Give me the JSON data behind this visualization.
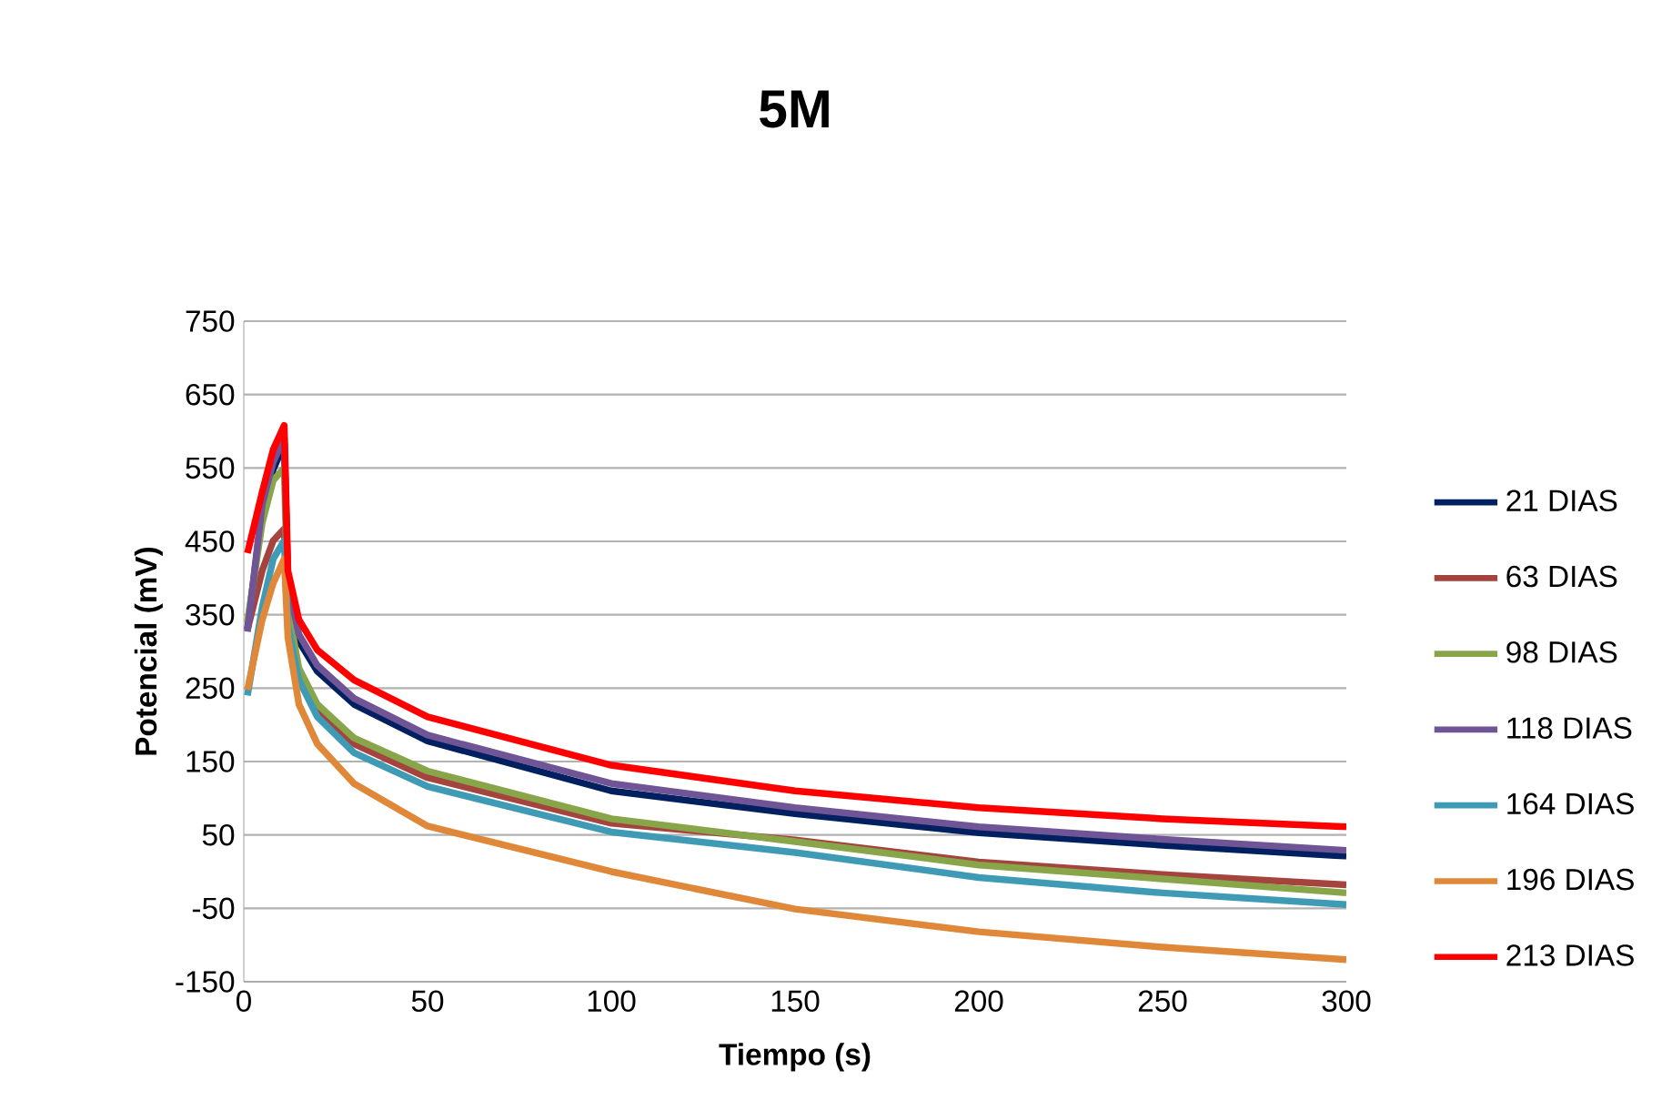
{
  "chart_data": {
    "type": "line",
    "title": "5M",
    "xlabel": "Tiempo (s)",
    "ylabel": "Potencial (mV)",
    "x": [
      1,
      5,
      8,
      11,
      12,
      15,
      20,
      30,
      50,
      100,
      150,
      200,
      250,
      300
    ],
    "series": [
      {
        "name": "21 DIAS",
        "color": "#002060",
        "values": [
          330,
          490,
          548,
          583,
          393,
          314,
          273,
          228,
          178,
          110,
          79,
          53,
          36,
          21
        ]
      },
      {
        "name": "63 DIAS",
        "color": "#a5443f",
        "values": [
          330,
          410,
          451,
          467,
          343,
          269,
          219,
          174,
          128,
          66,
          43,
          13,
          -4,
          -18
        ]
      },
      {
        "name": "98 DIAS",
        "color": "#88a54a",
        "values": [
          340,
          475,
          533,
          550,
          360,
          277,
          228,
          182,
          137,
          72,
          41,
          9,
          -10,
          -29
        ]
      },
      {
        "name": "118 DIAS",
        "color": "#6f5496",
        "values": [
          327,
          500,
          558,
          591,
          393,
          323,
          281,
          236,
          186,
          120,
          87,
          61,
          44,
          29
        ]
      },
      {
        "name": "164 DIAS",
        "color": "#3f9bb5",
        "values": [
          240,
          360,
          426,
          451,
          335,
          261,
          211,
          162,
          116,
          54,
          26,
          -8,
          -29,
          -45
        ]
      },
      {
        "name": "196 DIAS",
        "color": "#e0883a",
        "values": [
          248,
          343,
          393,
          426,
          319,
          228,
          174,
          120,
          62,
          0,
          -51,
          -82,
          -103,
          -120
        ]
      },
      {
        "name": "213 DIAS",
        "color": "#ff0000",
        "values": [
          434,
          517,
          575,
          608,
          410,
          343,
          302,
          261,
          211,
          145,
          110,
          87,
          72,
          61
        ]
      }
    ],
    "xlim": [
      0,
      300
    ],
    "xticks": [
      0,
      50,
      100,
      150,
      200,
      250,
      300
    ],
    "ylim": [
      -150,
      750
    ],
    "yticks": [
      -150,
      -50,
      50,
      150,
      250,
      350,
      450,
      550,
      650,
      750
    ],
    "grid": "y",
    "legend": "right",
    "line_style": "solid",
    "marker": "none"
  }
}
